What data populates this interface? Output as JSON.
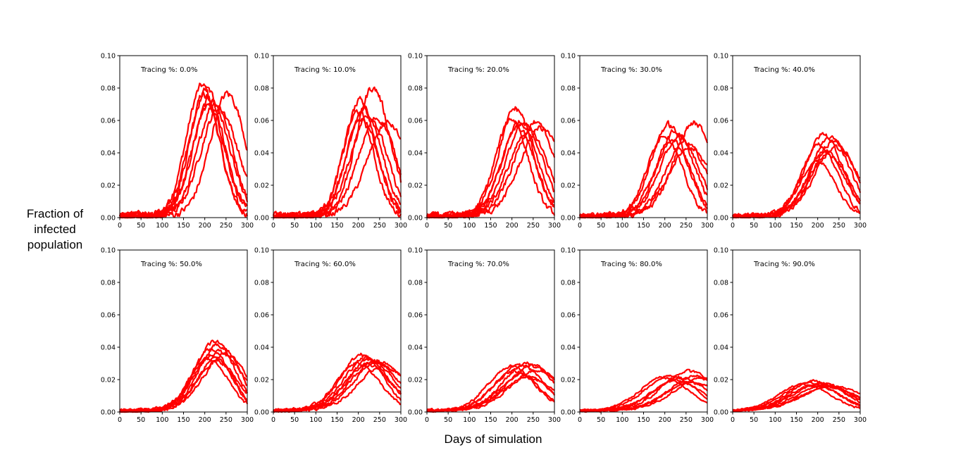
{
  "figure": {
    "ylabel_lines": [
      "Fraction of",
      "infected",
      "population"
    ],
    "xlabel": "Days of simulation",
    "line_color": "#ff0000"
  },
  "chart_data": {
    "type": "line",
    "shared_axes": {
      "xlim": [
        0,
        300
      ],
      "ylim": [
        0,
        0.1
      ],
      "xticks": [
        0,
        50,
        100,
        150,
        200,
        250,
        300
      ],
      "yticks": [
        0.0,
        0.02,
        0.04,
        0.06,
        0.08,
        0.1
      ],
      "ytick_labels": [
        "0.00",
        "0.02",
        "0.04",
        "0.06",
        "0.08",
        "0.10"
      ],
      "xtick_labels": [
        "0",
        "50",
        "100",
        "150",
        "200",
        "250",
        "300"
      ],
      "grid": false
    },
    "runs_per_panel": 8,
    "panels": [
      {
        "annotation": "Tracing %: 0.0%",
        "runs": [
          {
            "peak_day": 195,
            "peak": 0.08,
            "width": 38
          },
          {
            "peak_day": 205,
            "peak": 0.078,
            "width": 40
          },
          {
            "peak_day": 200,
            "peak": 0.075,
            "width": 36
          },
          {
            "peak_day": 215,
            "peak": 0.072,
            "width": 42
          },
          {
            "peak_day": 225,
            "peak": 0.07,
            "width": 40
          },
          {
            "peak_day": 210,
            "peak": 0.068,
            "width": 38
          },
          {
            "peak_day": 255,
            "peak": 0.075,
            "width": 42
          },
          {
            "peak_day": 235,
            "peak": 0.066,
            "width": 44
          }
        ]
      },
      {
        "annotation": "Tracing %: 10.0%",
        "runs": [
          {
            "peak_day": 205,
            "peak": 0.07,
            "width": 38
          },
          {
            "peak_day": 215,
            "peak": 0.066,
            "width": 40
          },
          {
            "peak_day": 200,
            "peak": 0.064,
            "width": 36
          },
          {
            "peak_day": 225,
            "peak": 0.062,
            "width": 42
          },
          {
            "peak_day": 235,
            "peak": 0.079,
            "width": 40
          },
          {
            "peak_day": 210,
            "peak": 0.06,
            "width": 38
          },
          {
            "peak_day": 245,
            "peak": 0.06,
            "width": 44
          },
          {
            "peak_day": 270,
            "peak": 0.057,
            "width": 48
          }
        ]
      },
      {
        "annotation": "Tracing %: 20.0%",
        "runs": [
          {
            "peak_day": 210,
            "peak": 0.066,
            "width": 40
          },
          {
            "peak_day": 200,
            "peak": 0.06,
            "width": 38
          },
          {
            "peak_day": 220,
            "peak": 0.058,
            "width": 42
          },
          {
            "peak_day": 230,
            "peak": 0.056,
            "width": 44
          },
          {
            "peak_day": 215,
            "peak": 0.054,
            "width": 40
          },
          {
            "peak_day": 240,
            "peak": 0.052,
            "width": 46
          },
          {
            "peak_day": 255,
            "peak": 0.057,
            "width": 48
          },
          {
            "peak_day": 270,
            "peak": 0.054,
            "width": 50
          }
        ]
      },
      {
        "annotation": "Tracing %: 30.0%",
        "runs": [
          {
            "peak_day": 210,
            "peak": 0.056,
            "width": 42
          },
          {
            "peak_day": 200,
            "peak": 0.05,
            "width": 40
          },
          {
            "peak_day": 225,
            "peak": 0.052,
            "width": 44
          },
          {
            "peak_day": 235,
            "peak": 0.048,
            "width": 46
          },
          {
            "peak_day": 220,
            "peak": 0.046,
            "width": 42
          },
          {
            "peak_day": 250,
            "peak": 0.045,
            "width": 48
          },
          {
            "peak_day": 270,
            "peak": 0.057,
            "width": 48
          },
          {
            "peak_day": 260,
            "peak": 0.042,
            "width": 50
          }
        ]
      },
      {
        "annotation": "Tracing %: 40.0%",
        "runs": [
          {
            "peak_day": 215,
            "peak": 0.05,
            "width": 44
          },
          {
            "peak_day": 205,
            "peak": 0.044,
            "width": 42
          },
          {
            "peak_day": 230,
            "peak": 0.048,
            "width": 46
          },
          {
            "peak_day": 240,
            "peak": 0.046,
            "width": 48
          },
          {
            "peak_day": 220,
            "peak": 0.04,
            "width": 44
          },
          {
            "peak_day": 200,
            "peak": 0.034,
            "width": 40
          },
          {
            "peak_day": 245,
            "peak": 0.042,
            "width": 50
          },
          {
            "peak_day": 225,
            "peak": 0.038,
            "width": 46
          }
        ]
      },
      {
        "annotation": "Tracing %: 50.0%",
        "runs": [
          {
            "peak_day": 225,
            "peak": 0.042,
            "width": 46
          },
          {
            "peak_day": 215,
            "peak": 0.038,
            "width": 44
          },
          {
            "peak_day": 235,
            "peak": 0.04,
            "width": 48
          },
          {
            "peak_day": 240,
            "peak": 0.036,
            "width": 50
          },
          {
            "peak_day": 220,
            "peak": 0.034,
            "width": 46
          },
          {
            "peak_day": 210,
            "peak": 0.032,
            "width": 44
          },
          {
            "peak_day": 250,
            "peak": 0.034,
            "width": 52
          },
          {
            "peak_day": 230,
            "peak": 0.03,
            "width": 48
          }
        ]
      },
      {
        "annotation": "Tracing %: 60.0%",
        "runs": [
          {
            "peak_day": 210,
            "peak": 0.034,
            "width": 50
          },
          {
            "peak_day": 220,
            "peak": 0.032,
            "width": 52
          },
          {
            "peak_day": 230,
            "peak": 0.031,
            "width": 54
          },
          {
            "peak_day": 240,
            "peak": 0.03,
            "width": 56
          },
          {
            "peak_day": 200,
            "peak": 0.029,
            "width": 50
          },
          {
            "peak_day": 250,
            "peak": 0.03,
            "width": 58
          },
          {
            "peak_day": 225,
            "peak": 0.028,
            "width": 54
          },
          {
            "peak_day": 260,
            "peak": 0.027,
            "width": 58
          }
        ]
      },
      {
        "annotation": "Tracing %: 70.0%",
        "runs": [
          {
            "peak_day": 200,
            "peak": 0.027,
            "width": 54
          },
          {
            "peak_day": 220,
            "peak": 0.028,
            "width": 56
          },
          {
            "peak_day": 240,
            "peak": 0.029,
            "width": 58
          },
          {
            "peak_day": 250,
            "peak": 0.027,
            "width": 60
          },
          {
            "peak_day": 210,
            "peak": 0.024,
            "width": 54
          },
          {
            "peak_day": 230,
            "peak": 0.022,
            "width": 56
          },
          {
            "peak_day": 260,
            "peak": 0.024,
            "width": 62
          },
          {
            "peak_day": 240,
            "peak": 0.02,
            "width": 60
          }
        ]
      },
      {
        "annotation": "Tracing %: 80.0%",
        "runs": [
          {
            "peak_day": 200,
            "peak": 0.02,
            "width": 58
          },
          {
            "peak_day": 215,
            "peak": 0.021,
            "width": 60
          },
          {
            "peak_day": 240,
            "peak": 0.02,
            "width": 62
          },
          {
            "peak_day": 260,
            "peak": 0.024,
            "width": 64
          },
          {
            "peak_day": 280,
            "peak": 0.021,
            "width": 64
          },
          {
            "peak_day": 230,
            "peak": 0.018,
            "width": 60
          },
          {
            "peak_day": 290,
            "peak": 0.019,
            "width": 66
          },
          {
            "peak_day": 270,
            "peak": 0.017,
            "width": 66
          }
        ]
      },
      {
        "annotation": "Tracing %: 90.0%",
        "runs": [
          {
            "peak_day": 170,
            "peak": 0.016,
            "width": 60
          },
          {
            "peak_day": 185,
            "peak": 0.017,
            "width": 62
          },
          {
            "peak_day": 200,
            "peak": 0.018,
            "width": 64
          },
          {
            "peak_day": 210,
            "peak": 0.016,
            "width": 66
          },
          {
            "peak_day": 195,
            "peak": 0.015,
            "width": 62
          },
          {
            "peak_day": 220,
            "peak": 0.015,
            "width": 68
          },
          {
            "peak_day": 240,
            "peak": 0.015,
            "width": 70
          },
          {
            "peak_day": 230,
            "peak": 0.014,
            "width": 68
          }
        ]
      }
    ]
  }
}
